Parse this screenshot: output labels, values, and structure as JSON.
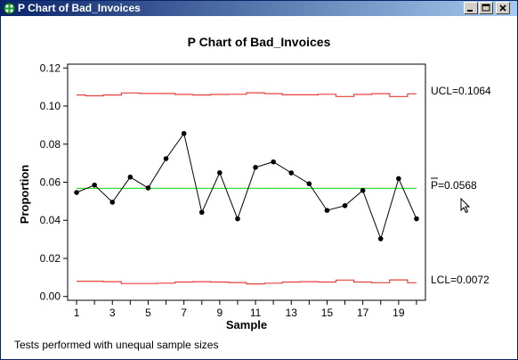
{
  "window": {
    "title": "P Chart of Bad_Invoices"
  },
  "icons": {
    "app": "minitab-graph-icon",
    "minimize": "minimize-icon",
    "maximize": "maximize-icon",
    "close": "close-icon",
    "cursor": "mouse-pointer-icon"
  },
  "colors": {
    "title_bar_start": "#0a246a",
    "title_bar_end": "#a6caf0",
    "limit_line": "#e8413c",
    "center_line": "#33dd33",
    "data_line": "#000000"
  },
  "chart_data": {
    "type": "line",
    "title": "P Chart of Bad_Invoices",
    "xlabel": "Sample",
    "ylabel": "Proportion",
    "xlim": [
      0.5,
      20.5
    ],
    "ylim": [
      -0.002,
      0.122
    ],
    "x_ticks": [
      1,
      3,
      5,
      7,
      9,
      11,
      13,
      15,
      17,
      19
    ],
    "y_ticks": [
      0.0,
      0.02,
      0.04,
      0.06,
      0.08,
      0.1,
      0.12
    ],
    "y_tick_labels": [
      "0.00",
      "0.02",
      "0.04",
      "0.06",
      "0.08",
      "0.10",
      "0.12"
    ],
    "x": [
      1,
      2,
      3,
      4,
      5,
      6,
      7,
      8,
      9,
      10,
      11,
      12,
      13,
      14,
      15,
      16,
      17,
      18,
      19,
      20
    ],
    "proportion": [
      0.0546,
      0.0585,
      0.0495,
      0.0627,
      0.057,
      0.0724,
      0.0856,
      0.0442,
      0.065,
      0.0408,
      0.0678,
      0.0707,
      0.0649,
      0.0592,
      0.0452,
      0.0477,
      0.0557,
      0.0303,
      0.0619,
      0.0408
    ],
    "center_line": 0.0568,
    "ucl": [
      0.1058,
      0.1054,
      0.1058,
      0.1069,
      0.1066,
      0.1066,
      0.1061,
      0.1058,
      0.1061,
      0.1062,
      0.107,
      0.1065,
      0.1059,
      0.1059,
      0.1062,
      0.105,
      0.1061,
      0.1065,
      0.105,
      0.1064
    ],
    "lcl": [
      0.008,
      0.008,
      0.0078,
      0.0068,
      0.0068,
      0.007,
      0.0076,
      0.0078,
      0.0076,
      0.0073,
      0.0066,
      0.007,
      0.0076,
      0.0078,
      0.0076,
      0.0086,
      0.0076,
      0.0072,
      0.0087,
      0.0072
    ],
    "ucl_label": "UCL=0.1064",
    "center_label_symbol": "P",
    "center_label_value": "=0.0568",
    "lcl_label": "LCL=0.0072",
    "footnote": "Tests performed with unequal sample sizes",
    "grid": false,
    "legend": "none"
  }
}
